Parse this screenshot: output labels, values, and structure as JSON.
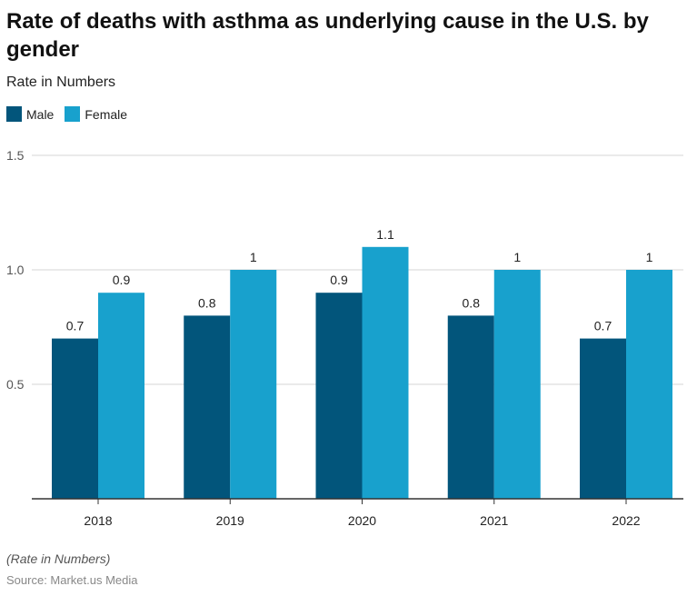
{
  "title": "Rate of deaths with asthma as underlying cause in the U.S. by gender",
  "subtitle": "Rate in Numbers",
  "note": "(Rate in Numbers)",
  "source": "Source: Market.us Media",
  "chart_data": {
    "type": "bar",
    "title": "Rate of deaths with asthma as underlying cause in the U.S. by gender",
    "subtitle": "Rate in Numbers",
    "categories": [
      "2018",
      "2019",
      "2020",
      "2021",
      "2022"
    ],
    "series": [
      {
        "name": "Male",
        "color": "#02557b",
        "values": [
          0.7,
          0.8,
          0.9,
          0.8,
          0.7
        ],
        "labels": [
          "0.7",
          "0.8",
          "0.9",
          "0.8",
          "0.7"
        ]
      },
      {
        "name": "Female",
        "color": "#18a1cd",
        "values": [
          0.9,
          1,
          1.1,
          1,
          1
        ],
        "labels": [
          "0.9",
          "1",
          "1.1",
          "1",
          "1"
        ]
      }
    ],
    "ylim": [
      0,
      1.5
    ],
    "yticks": [
      "0.5",
      "1.0",
      "1.5"
    ],
    "grid": true,
    "legend": "top-left"
  }
}
